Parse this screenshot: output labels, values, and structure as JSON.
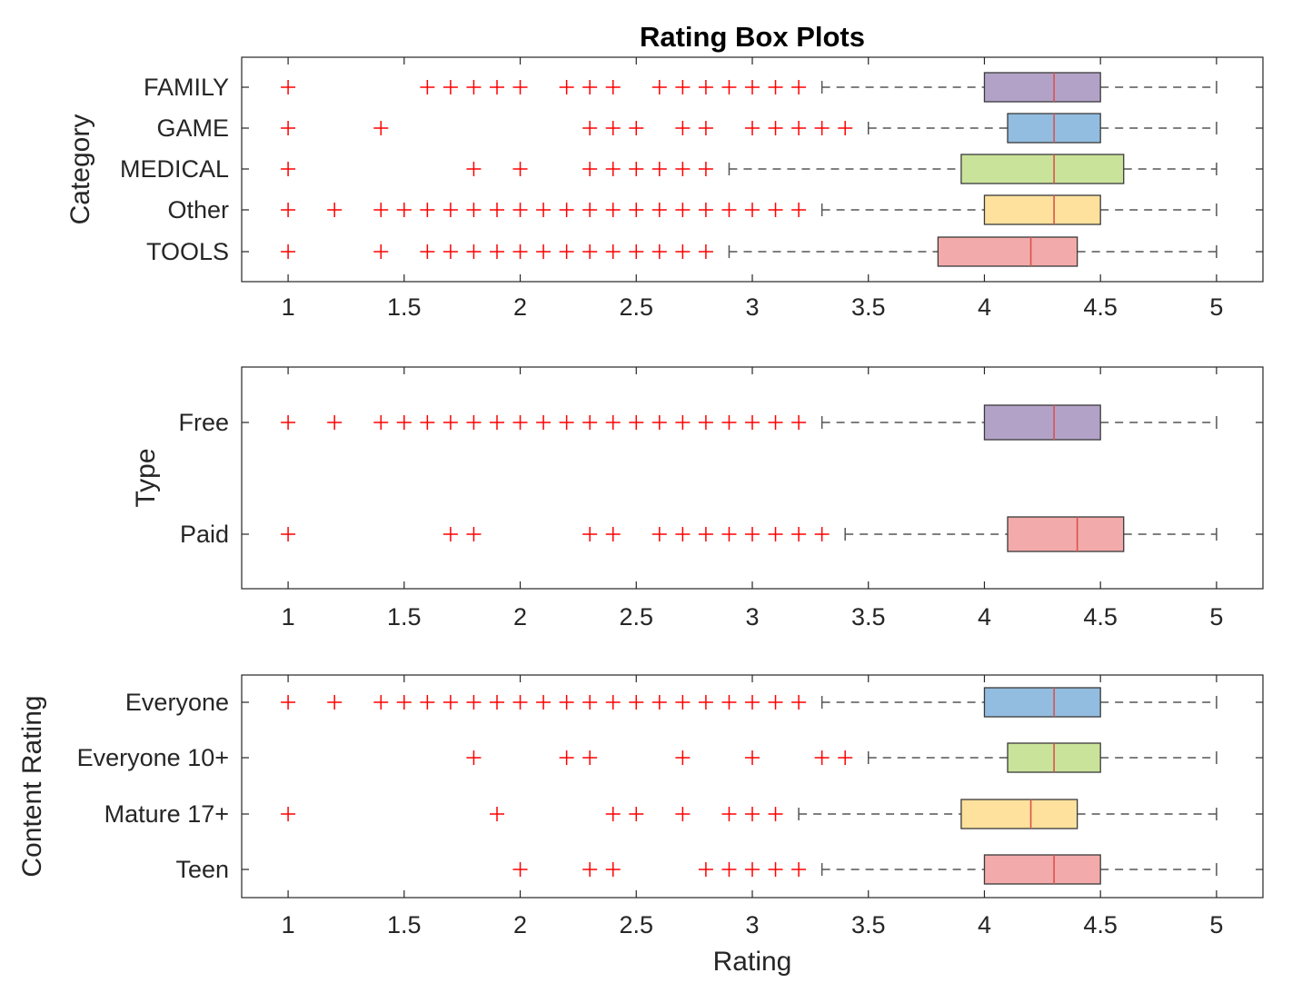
{
  "figure": {
    "title": "Rating Box Plots",
    "xlabel": "Rating"
  },
  "colors": {
    "outlier": "#ff0000",
    "median": "#d9534f",
    "whisker": "#555555",
    "axis": "#262626",
    "palette": [
      "#b3a2c7",
      "#92bce0",
      "#c9e39a",
      "#fde19c",
      "#f3aaaa"
    ]
  },
  "chart_data": [
    {
      "type": "box",
      "orientation": "horizontal",
      "ylabel": "Category",
      "xlim": [
        0.8,
        5.2
      ],
      "xticks": [
        "1",
        "1.5",
        "2",
        "2.5",
        "3",
        "3.5",
        "4",
        "4.5",
        "5"
      ],
      "categories": [
        "FAMILY",
        "GAME",
        "MEDICAL",
        "Other",
        "TOOLS"
      ],
      "boxes": [
        {
          "q1": 4.0,
          "median": 4.3,
          "q3": 4.5,
          "whisker_low": 3.3,
          "whisker_high": 5.0,
          "color": "#b3a2c7",
          "outliers": [
            1,
            1.6,
            1.7,
            1.8,
            1.9,
            2.0,
            2.2,
            2.3,
            2.4,
            2.6,
            2.7,
            2.8,
            2.9,
            3.0,
            3.1,
            3.2
          ]
        },
        {
          "q1": 4.1,
          "median": 4.3,
          "q3": 4.5,
          "whisker_low": 3.5,
          "whisker_high": 5.0,
          "color": "#92bce0",
          "outliers": [
            1,
            1.4,
            2.3,
            2.4,
            2.5,
            2.7,
            2.8,
            3.0,
            3.1,
            3.2,
            3.3,
            3.4
          ]
        },
        {
          "q1": 3.9,
          "median": 4.3,
          "q3": 4.6,
          "whisker_low": 2.9,
          "whisker_high": 5.0,
          "color": "#c9e39a",
          "outliers": [
            1,
            1.8,
            2.0,
            2.3,
            2.4,
            2.5,
            2.6,
            2.7,
            2.8
          ]
        },
        {
          "q1": 4.0,
          "median": 4.3,
          "q3": 4.5,
          "whisker_low": 3.3,
          "whisker_high": 5.0,
          "color": "#fde19c",
          "outliers": [
            1,
            1.2,
            1.4,
            1.5,
            1.6,
            1.7,
            1.8,
            1.9,
            2.0,
            2.1,
            2.2,
            2.3,
            2.4,
            2.5,
            2.6,
            2.7,
            2.8,
            2.9,
            3.0,
            3.1,
            3.2
          ]
        },
        {
          "q1": 3.8,
          "median": 4.2,
          "q3": 4.4,
          "whisker_low": 2.9,
          "whisker_high": 5.0,
          "color": "#f3aaaa",
          "outliers": [
            1,
            1.4,
            1.6,
            1.7,
            1.8,
            1.9,
            2.0,
            2.1,
            2.2,
            2.3,
            2.4,
            2.5,
            2.6,
            2.7,
            2.8
          ]
        }
      ]
    },
    {
      "type": "box",
      "orientation": "horizontal",
      "ylabel": "Type",
      "xlim": [
        0.8,
        5.2
      ],
      "xticks": [
        "1",
        "1.5",
        "2",
        "2.5",
        "3",
        "3.5",
        "4",
        "4.5",
        "5"
      ],
      "categories": [
        "Free",
        "Paid"
      ],
      "boxes": [
        {
          "q1": 4.0,
          "median": 4.3,
          "q3": 4.5,
          "whisker_low": 3.3,
          "whisker_high": 5.0,
          "color": "#b3a2c7",
          "outliers": [
            1,
            1.2,
            1.4,
            1.5,
            1.6,
            1.7,
            1.8,
            1.9,
            2.0,
            2.1,
            2.2,
            2.3,
            2.4,
            2.5,
            2.6,
            2.7,
            2.8,
            2.9,
            3.0,
            3.1,
            3.2
          ]
        },
        {
          "q1": 4.1,
          "median": 4.4,
          "q3": 4.6,
          "whisker_low": 3.4,
          "whisker_high": 5.0,
          "color": "#f3aaaa",
          "outliers": [
            1,
            1.7,
            1.8,
            2.3,
            2.4,
            2.6,
            2.7,
            2.8,
            2.9,
            3.0,
            3.1,
            3.2,
            3.3
          ]
        }
      ]
    },
    {
      "type": "box",
      "orientation": "horizontal",
      "ylabel": "Content Rating",
      "xlim": [
        0.8,
        5.2
      ],
      "xticks": [
        "1",
        "1.5",
        "2",
        "2.5",
        "3",
        "3.5",
        "4",
        "4.5",
        "5"
      ],
      "categories": [
        "Everyone",
        "Everyone 10+",
        "Mature 17+",
        "Teen"
      ],
      "boxes": [
        {
          "q1": 4.0,
          "median": 4.3,
          "q3": 4.5,
          "whisker_low": 3.3,
          "whisker_high": 5.0,
          "color": "#92bce0",
          "outliers": [
            1,
            1.2,
            1.4,
            1.5,
            1.6,
            1.7,
            1.8,
            1.9,
            2.0,
            2.1,
            2.2,
            2.3,
            2.4,
            2.5,
            2.6,
            2.7,
            2.8,
            2.9,
            3.0,
            3.1,
            3.2
          ]
        },
        {
          "q1": 4.1,
          "median": 4.3,
          "q3": 4.5,
          "whisker_low": 3.5,
          "whisker_high": 5.0,
          "color": "#c9e39a",
          "outliers": [
            1.8,
            2.2,
            2.3,
            2.7,
            3.0,
            3.3,
            3.4
          ]
        },
        {
          "q1": 3.9,
          "median": 4.2,
          "q3": 4.4,
          "whisker_low": 3.2,
          "whisker_high": 5.0,
          "color": "#fde19c",
          "outliers": [
            1,
            1.9,
            2.4,
            2.5,
            2.7,
            2.9,
            3.0,
            3.1
          ]
        },
        {
          "q1": 4.0,
          "median": 4.3,
          "q3": 4.5,
          "whisker_low": 3.3,
          "whisker_high": 5.0,
          "color": "#f3aaaa",
          "outliers": [
            2.0,
            2.3,
            2.4,
            2.8,
            2.9,
            3.0,
            3.1,
            3.2
          ]
        }
      ]
    }
  ]
}
